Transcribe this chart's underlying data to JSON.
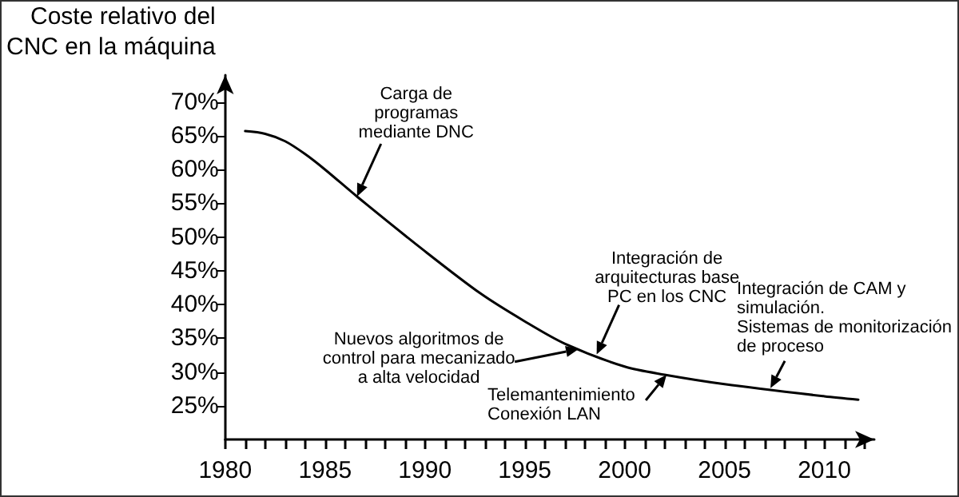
{
  "chart_data": {
    "type": "line",
    "ylabel": "Coste relativo del\nCNC en la máquina",
    "x": [
      1981,
      1982,
      1983,
      1984,
      1985,
      1986.6,
      1990,
      1992.8,
      1995,
      1997,
      2000,
      2002,
      2005,
      2010,
      2011.7
    ],
    "series": [
      {
        "color": "#000000",
        "values": [
          65.7,
          65.3,
          64.2,
          62.3,
          60,
          56,
          47.9,
          41.6,
          37.5,
          34.2,
          30.8,
          29.6,
          28.2,
          26.4,
          25.9
        ]
      }
    ],
    "xlim": [
      1980,
      2012.5
    ],
    "ylim": [
      20,
      74
    ],
    "xticks": [
      1980,
      {
        "value": 1981,
        "label": null
      },
      {
        "value": 1982,
        "label": null
      },
      {
        "value": 1983,
        "label": null
      },
      {
        "value": 1984,
        "label": null
      },
      1985,
      {
        "value": 1986,
        "label": null
      },
      {
        "value": 1987,
        "label": null
      },
      {
        "value": 1988,
        "label": null
      },
      {
        "value": 1989,
        "label": null
      },
      1990,
      {
        "value": 1991,
        "label": null
      },
      {
        "value": 1992,
        "label": null
      },
      {
        "value": 1993,
        "label": null
      },
      {
        "value": 1994,
        "label": null
      },
      1995,
      {
        "value": 1996,
        "label": null
      },
      {
        "value": 1997,
        "label": null
      },
      {
        "value": 1998,
        "label": null
      },
      {
        "value": 1999,
        "label": null
      },
      2000,
      {
        "value": 2001,
        "label": null
      },
      {
        "value": 2002,
        "label": null
      },
      {
        "value": 2003,
        "label": null
      },
      {
        "value": 2004,
        "label": null
      },
      2005,
      {
        "value": 2006,
        "label": null
      },
      {
        "value": 2007,
        "label": null
      },
      {
        "value": 2008,
        "label": null
      },
      {
        "value": 2009,
        "label": null
      },
      2010,
      {
        "value": 2011,
        "label": null
      },
      {
        "value": 2012,
        "label": null
      }
    ],
    "yticks": [
      {
        "value": 25,
        "label": "25%"
      },
      {
        "value": 30,
        "label": "30%"
      },
      {
        "value": 35,
        "label": "35%"
      },
      {
        "value": 40,
        "label": "40%"
      },
      {
        "value": 45,
        "label": "45%"
      },
      {
        "value": 50,
        "label": "50%"
      },
      {
        "value": 55,
        "label": "55%"
      },
      {
        "value": 60,
        "label": "60%"
      },
      {
        "value": 65,
        "label": "65%"
      },
      {
        "value": 70,
        "label": "70%"
      }
    ],
    "grid": false,
    "marker": "none",
    "line_style": "solid",
    "annotations": [
      {
        "text": "Carga de\nprogramas\nmediante DNC",
        "x": 1986.6,
        "y": 56
      },
      {
        "text": "Nuevos algoritmos de\ncontrol para mecanizado\na alta velocidad",
        "x": 1997.7,
        "y": 33.4
      },
      {
        "text": "Integración de\narquitecturas base\nPC en los CNC",
        "x": 1998.6,
        "y": 32.6
      },
      {
        "text": "Telemantenimiento\nConexión LAN",
        "x": 2002.1,
        "y": 29.6
      },
      {
        "text": "Integración de CAM y\nsimulación.\nSistemas de monitorización\nde proceso",
        "x": 2007.3,
        "y": 27.6
      }
    ]
  }
}
